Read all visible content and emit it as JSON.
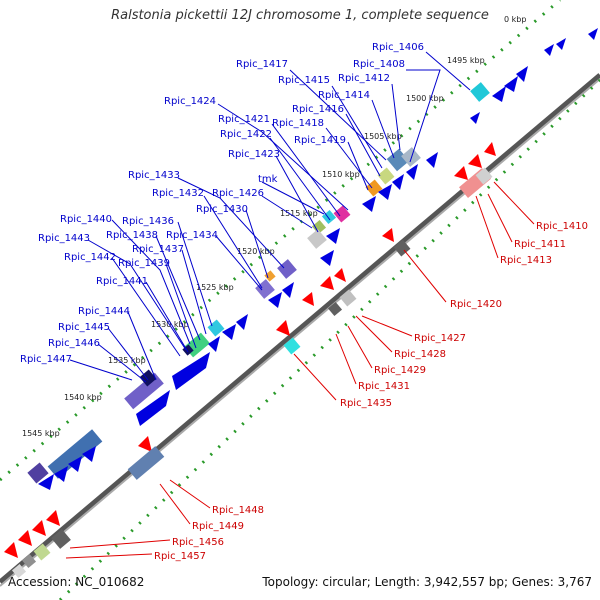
{
  "title": "Ralstonia pickettii 12J chromosome 1, complete sequence",
  "footer": {
    "accession": "Accession: NC_010682",
    "summary": "Topology: circular; Length: 3,942,557 bp; Genes: 3,767"
  },
  "colors": {
    "forward_gene": "#0000e0",
    "reverse_gene": "#ff0000",
    "forward_leader": "#0000cc",
    "reverse_leader": "#e00000",
    "backbone": "#777777",
    "dotted_ring": "#2a9a2a"
  },
  "ticks": [
    "0 kbp",
    "1495 kbp",
    "1500 kbp",
    "1505 kbp",
    "1510 kbp",
    "1515 kbp",
    "1520 kbp",
    "1525 kbp",
    "1530 kbp",
    "1535 kbp",
    "1540 kbp",
    "1545 kbp"
  ],
  "top_labels": [
    "Rpic_1406",
    "Rpic_1408",
    "Rpic_1412",
    "Rpic_1417",
    "Rpic_1415",
    "Rpic_1414",
    "Rpic_1416",
    "Rpic_1424",
    "Rpic_1421",
    "Rpic_1418",
    "Rpic_1422",
    "Rpic_1419",
    "Rpic_1423",
    "Rpic_1433",
    "tmk",
    "Rpic_1432",
    "Rpic_1426",
    "Rpic_1430",
    "Rpic_1440",
    "Rpic_1436",
    "Rpic_1443",
    "Rpic_1438",
    "Rpic_1434",
    "Rpic_1437",
    "Rpic_1442",
    "Rpic_1439",
    "Rpic_1441",
    "Rpic_1444",
    "Rpic_1445",
    "Rpic_1446",
    "Rpic_1447"
  ],
  "bottom_labels": [
    "Rpic_1410",
    "Rpic_1411",
    "Rpic_1413",
    "Rpic_1420",
    "Rpic_1427",
    "Rpic_1428",
    "Rpic_1429",
    "Rpic_1431",
    "Rpic_1435",
    "Rpic_1448",
    "Rpic_1449",
    "Rpic_1456",
    "Rpic_1457"
  ]
}
